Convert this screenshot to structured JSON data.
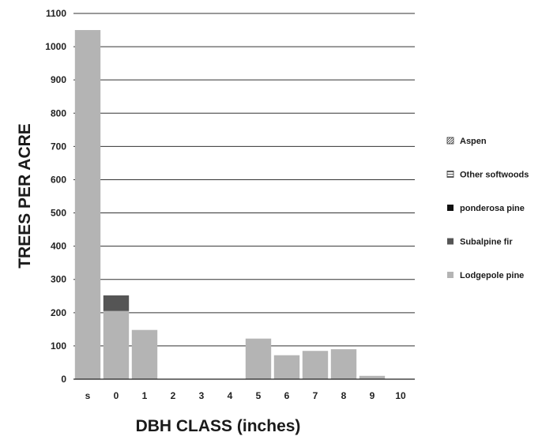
{
  "chart_data": {
    "type": "bar",
    "stacked": true,
    "title": "",
    "xlabel": "DBH CLASS (inches)",
    "ylabel": "TREES PER ACRE",
    "ylim": [
      0,
      1100
    ],
    "yticks": [
      0,
      100,
      200,
      300,
      400,
      500,
      600,
      700,
      800,
      900,
      1000,
      1100
    ],
    "grid": "horizontal",
    "legend_position": "right",
    "categories": [
      "s",
      "0",
      "1",
      "2",
      "3",
      "4",
      "5",
      "6",
      "7",
      "8",
      "9",
      "10"
    ],
    "series": [
      {
        "name": "Lodgepole pine",
        "color": "#b4b4b4",
        "values": [
          1050,
          205,
          148,
          0,
          0,
          0,
          122,
          72,
          85,
          90,
          10,
          0
        ]
      },
      {
        "name": "Subalpine fir",
        "color": "#555555",
        "values": [
          0,
          47,
          0,
          0,
          0,
          0,
          0,
          0,
          0,
          0,
          0,
          0
        ]
      },
      {
        "name": "ponderosa pine",
        "color": "#111111",
        "values": [
          0,
          0,
          0,
          0,
          0,
          0,
          0,
          0,
          0,
          0,
          0,
          0
        ]
      },
      {
        "name": "Other softwoods",
        "color": "#ffffff",
        "values": [
          0,
          0,
          0,
          0,
          0,
          0,
          0,
          0,
          0,
          0,
          0,
          0
        ]
      },
      {
        "name": "Aspen",
        "color": "#dddddd",
        "values": [
          0,
          0,
          0,
          0,
          0,
          0,
          0,
          0,
          0,
          0,
          0,
          0
        ]
      }
    ],
    "legend_order": [
      "Aspen",
      "Other softwoods",
      "ponderosa pine",
      "Subalpine fir",
      "Lodgepole pine"
    ]
  }
}
